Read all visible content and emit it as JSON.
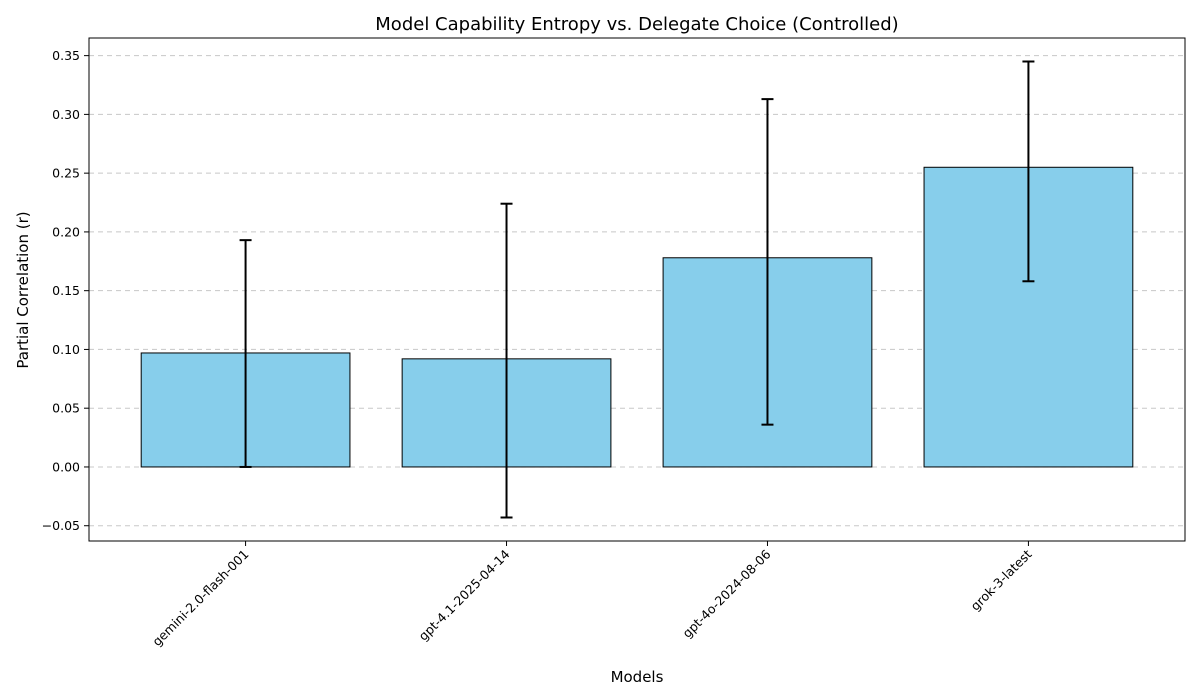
{
  "chart_data": {
    "type": "bar",
    "title": "Model Capability Entropy vs. Delegate Choice (Controlled)",
    "xlabel": "Models",
    "ylabel": "Partial Correlation (r)",
    "categories": [
      "gemini-2.0-flash-001",
      "gpt-4.1-2025-04-14",
      "gpt-4o-2024-08-06",
      "grok-3-latest"
    ],
    "values": [
      0.097,
      0.092,
      0.178,
      0.255
    ],
    "error_low": [
      0.0,
      -0.043,
      0.036,
      0.158
    ],
    "error_high": [
      0.193,
      0.224,
      0.313,
      0.345
    ],
    "ylim": [
      -0.063,
      0.365
    ],
    "yticks": [
      -0.05,
      0.0,
      0.05,
      0.1,
      0.15,
      0.2,
      0.25,
      0.3,
      0.35
    ],
    "ytick_labels": [
      "−0.05",
      "0.00",
      "0.05",
      "0.10",
      "0.15",
      "0.20",
      "0.25",
      "0.30",
      "0.35"
    ],
    "grid": "y-dashed",
    "bar_color": "#87CEEB",
    "edge_color": "#000000"
  }
}
